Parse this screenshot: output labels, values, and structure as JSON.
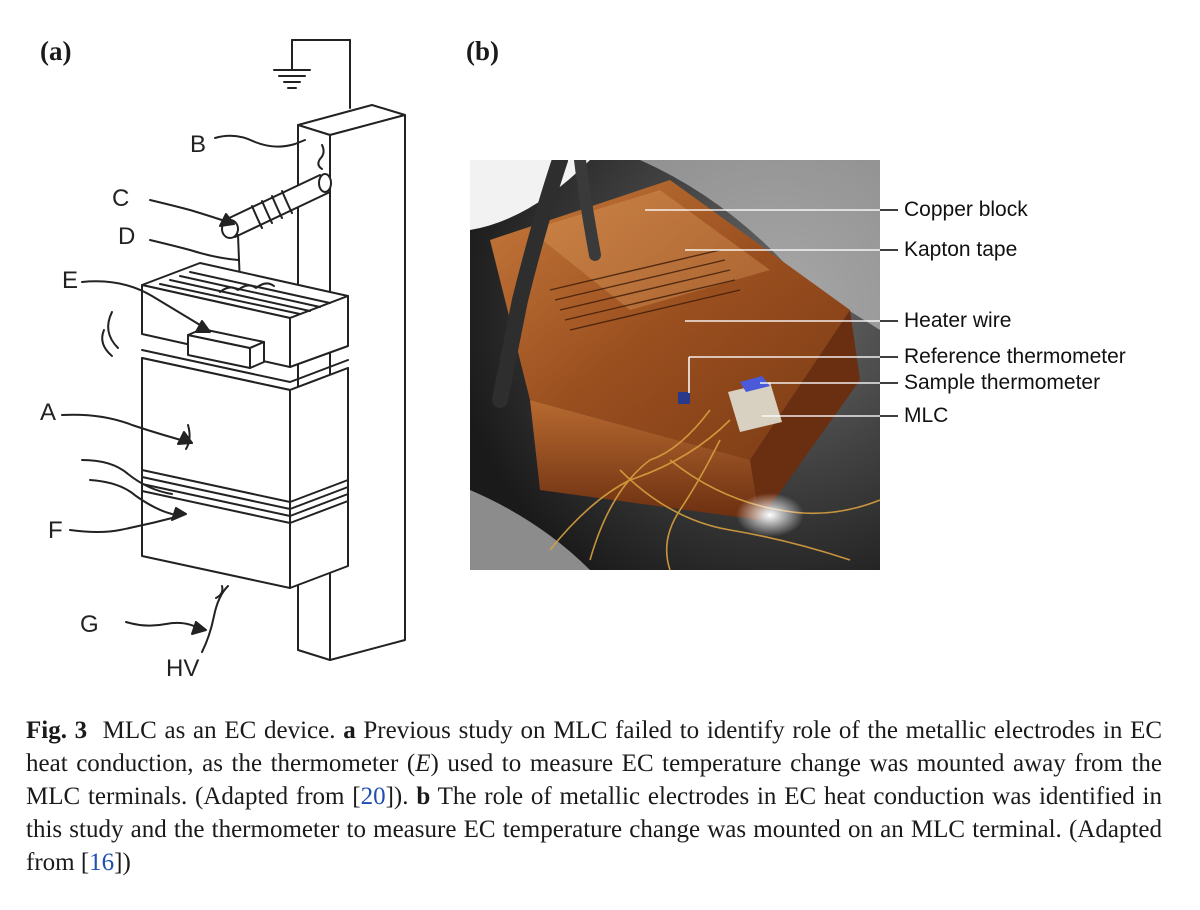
{
  "panels": {
    "a_label": "(a)",
    "b_label": "(b)"
  },
  "drawing_a": {
    "letters": [
      "B",
      "C",
      "D",
      "E",
      "A",
      "F",
      "G"
    ],
    "hv_label": "HV"
  },
  "photo_b": {
    "labels": [
      "Copper block",
      "Kapton tape",
      "Heater wire",
      "Reference thermometer",
      "Sample thermometer",
      "MLC"
    ]
  },
  "caption": {
    "fig": "Fig. 3",
    "t1": "MLC as an EC device.",
    "a": "a",
    "t2": "Previous study on MLC failed to identify role of the metallic electrodes in EC heat conduction, as the thermometer (",
    "e": "E",
    "t3": ") used to measure EC temperature change was mounted away from the MLC terminals. (Adapted from [",
    "ref1": "20",
    "t4": "]).",
    "b": "b",
    "t5": "The role of metallic electrodes in EC heat conduction was identified in this study and the thermometer to measure EC temperature change was mounted on an MLC terminal. (Adapted from [",
    "ref2": "16",
    "t6": "])"
  }
}
